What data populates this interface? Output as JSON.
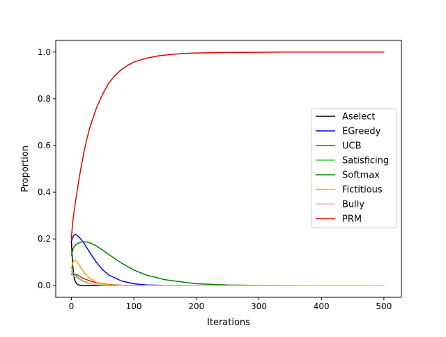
{
  "chart_data": {
    "type": "line",
    "title": "",
    "xlabel": "Iterations",
    "ylabel": "Proportion",
    "xlim": [
      -25,
      528
    ],
    "ylim": [
      -0.05,
      1.05
    ],
    "xticks": [
      0,
      100,
      200,
      300,
      400,
      500
    ],
    "yticks": [
      0.0,
      0.2,
      0.4,
      0.6,
      0.8,
      1.0
    ],
    "xtick_labels": [
      "0",
      "100",
      "200",
      "300",
      "400",
      "500"
    ],
    "ytick_labels": [
      "0.0",
      "0.2",
      "0.4",
      "0.6",
      "0.8",
      "1.0"
    ],
    "grid": false,
    "legend_position": "center-right",
    "series": [
      {
        "name": "Aselect",
        "color": "#000000",
        "x": [
          0,
          2,
          4,
          6,
          8,
          10,
          15,
          20,
          30,
          50,
          100,
          500
        ],
        "y": [
          0.19,
          0.09,
          0.04,
          0.02,
          0.01,
          0.004,
          0.001,
          0.0,
          0.0,
          0.0,
          0.0,
          0.0
        ]
      },
      {
        "name": "EGreedy",
        "color": "#0000ff",
        "x": [
          0,
          2,
          4,
          6,
          8,
          10,
          15,
          20,
          30,
          40,
          50,
          60,
          80,
          100,
          120,
          150,
          200,
          300,
          500
        ],
        "y": [
          0.19,
          0.205,
          0.215,
          0.22,
          0.218,
          0.213,
          0.2,
          0.182,
          0.14,
          0.1,
          0.068,
          0.045,
          0.02,
          0.008,
          0.003,
          0.001,
          0.0,
          0.0,
          0.0
        ]
      },
      {
        "name": "UCB",
        "color": "#b22222",
        "x": [
          0,
          5,
          10,
          20,
          30,
          40,
          60,
          80,
          100,
          150,
          500
        ],
        "y": [
          0.05,
          0.05,
          0.045,
          0.03,
          0.02,
          0.012,
          0.005,
          0.002,
          0.001,
          0.0,
          0.0
        ]
      },
      {
        "name": "Satisficing",
        "color": "#32cd32",
        "x": [
          0,
          3,
          5,
          10,
          20,
          30,
          40,
          60,
          80,
          100,
          500
        ],
        "y": [
          0.06,
          0.055,
          0.05,
          0.035,
          0.018,
          0.009,
          0.004,
          0.001,
          0.0,
          0.0,
          0.0
        ]
      },
      {
        "name": "Softmax",
        "color": "#008000",
        "x": [
          0,
          3,
          6,
          10,
          15,
          20,
          25,
          30,
          40,
          50,
          60,
          80,
          100,
          120,
          150,
          200,
          250,
          300,
          400,
          500
        ],
        "y": [
          0.13,
          0.16,
          0.172,
          0.18,
          0.186,
          0.188,
          0.187,
          0.183,
          0.17,
          0.152,
          0.133,
          0.097,
          0.067,
          0.045,
          0.025,
          0.008,
          0.003,
          0.001,
          0.0,
          0.0
        ]
      },
      {
        "name": "Fictitious",
        "color": "#ffa500",
        "x": [
          0,
          2,
          4,
          6,
          8,
          10,
          15,
          20,
          25,
          30,
          40,
          50,
          60,
          80,
          100,
          500
        ],
        "y": [
          0.07,
          0.095,
          0.107,
          0.108,
          0.104,
          0.097,
          0.078,
          0.058,
          0.043,
          0.03,
          0.015,
          0.007,
          0.003,
          0.001,
          0.0,
          0.0
        ]
      },
      {
        "name": "Bully",
        "color": "#ffb6c1",
        "x": [
          0,
          5,
          10,
          20,
          30,
          50,
          500
        ],
        "y": [
          0.045,
          0.04,
          0.03,
          0.015,
          0.007,
          0.001,
          0.0
        ]
      },
      {
        "name": "PRM",
        "color": "#e00000",
        "x": [
          0,
          2,
          5,
          10,
          15,
          20,
          25,
          30,
          40,
          50,
          60,
          70,
          80,
          90,
          100,
          120,
          140,
          160,
          180,
          200,
          250,
          300,
          350,
          400,
          450,
          500
        ],
        "y": [
          0.2,
          0.27,
          0.33,
          0.42,
          0.5,
          0.57,
          0.63,
          0.68,
          0.76,
          0.82,
          0.868,
          0.9,
          0.925,
          0.943,
          0.957,
          0.974,
          0.984,
          0.99,
          0.994,
          0.996,
          0.998,
          0.999,
          1.0,
          1.0,
          1.0,
          1.0
        ]
      }
    ]
  }
}
